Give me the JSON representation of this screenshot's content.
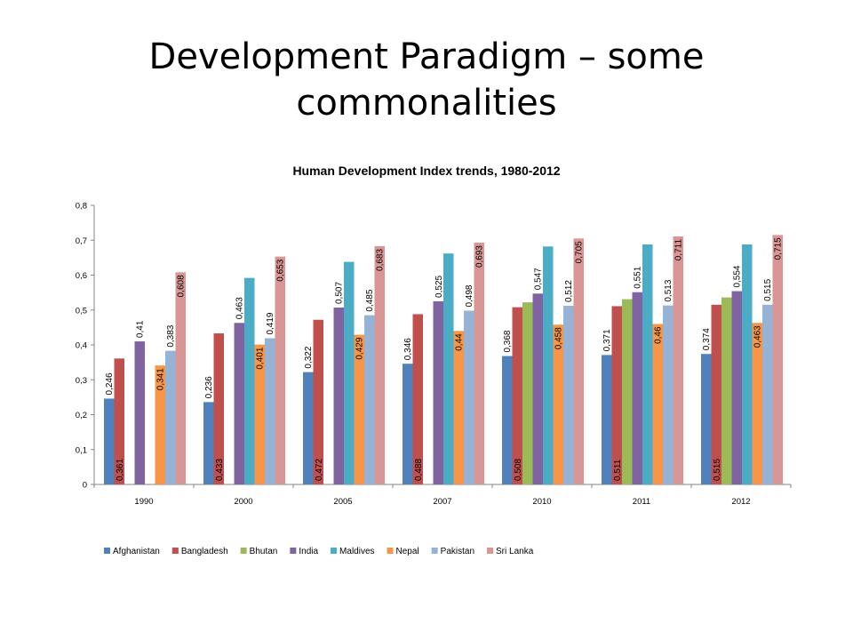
{
  "slide": {
    "title_line1": "Development Paradigm – some",
    "title_line2": "commonalities"
  },
  "chart_data": {
    "type": "bar",
    "title": "Human Development Index trends, 1980-2012",
    "xlabel": "",
    "ylabel": "",
    "ylim": [
      0,
      0.8
    ],
    "yticks": [
      "0",
      "0,1",
      "0,2",
      "0,3",
      "0,4",
      "0,5",
      "0,6",
      "0,7",
      "0,8"
    ],
    "grid": false,
    "legend_position": "bottom",
    "decimal_separator": ",",
    "categories": [
      "1990",
      "2000",
      "2005",
      "2007",
      "2010",
      "2011",
      "2012"
    ],
    "series": [
      {
        "name": "Afghanistan",
        "color": "#4F81BD",
        "values": [
          0.246,
          0.236,
          0.322,
          0.346,
          0.368,
          0.371,
          0.374
        ],
        "labels": [
          true,
          true,
          true,
          true,
          true,
          true,
          true
        ],
        "label_pos": "top"
      },
      {
        "name": "Bangladesh",
        "color": "#C0504D",
        "values": [
          0.361,
          0.433,
          0.472,
          0.488,
          0.508,
          0.511,
          0.515
        ],
        "labels": [
          true,
          true,
          true,
          true,
          true,
          true,
          true
        ],
        "label_pos": "bottom"
      },
      {
        "name": "Bhutan",
        "color": "#9BBB59",
        "values": [
          null,
          null,
          null,
          null,
          0.522,
          0.531,
          0.536
        ],
        "labels": [
          false,
          false,
          false,
          false,
          false,
          false,
          false
        ],
        "label_pos": "top"
      },
      {
        "name": "India",
        "color": "#8064A2",
        "values": [
          0.41,
          0.463,
          0.507,
          0.525,
          0.547,
          0.551,
          0.554
        ],
        "labels": [
          true,
          true,
          true,
          true,
          true,
          true,
          true
        ],
        "label_pos": "top"
      },
      {
        "name": "Maldives",
        "color": "#4BACC6",
        "values": [
          null,
          0.592,
          0.638,
          0.662,
          0.682,
          0.688,
          0.688
        ],
        "labels": [
          false,
          false,
          false,
          false,
          false,
          false,
          false
        ],
        "label_pos": "top"
      },
      {
        "name": "Nepal",
        "color": "#F79646",
        "values": [
          0.341,
          0.401,
          0.429,
          0.44,
          0.458,
          0.46,
          0.463
        ],
        "labels": [
          true,
          true,
          true,
          true,
          true,
          true,
          true
        ],
        "label_pos": "inside"
      },
      {
        "name": "Pakistan",
        "color": "#95B3D7",
        "values": [
          0.383,
          0.419,
          0.485,
          0.498,
          0.512,
          0.513,
          0.515
        ],
        "labels": [
          true,
          true,
          true,
          true,
          true,
          true,
          true
        ],
        "label_pos": "top"
      },
      {
        "name": "Sri Lanka",
        "color": "#D99694",
        "values": [
          0.608,
          0.653,
          0.683,
          0.693,
          0.705,
          0.711,
          0.715
        ],
        "labels": [
          true,
          true,
          true,
          true,
          true,
          true,
          true
        ],
        "label_pos": "inside"
      }
    ]
  }
}
